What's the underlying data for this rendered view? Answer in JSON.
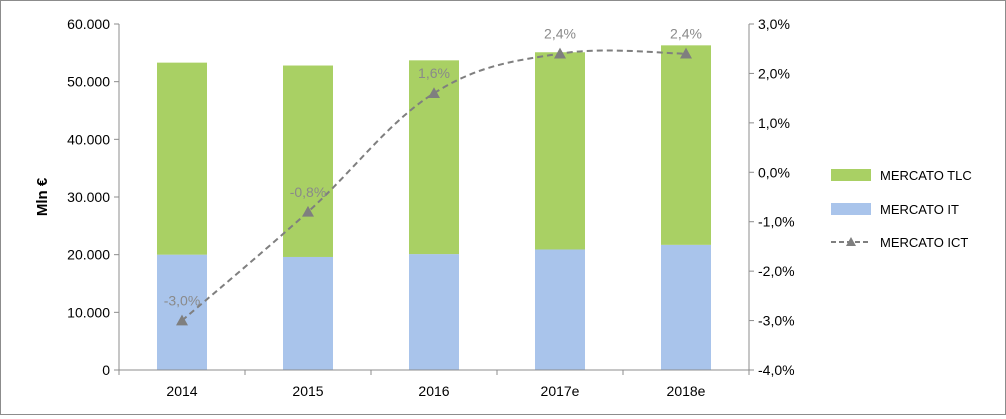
{
  "chart_data": {
    "type": "bar",
    "stacked": true,
    "categories": [
      "2014",
      "2015",
      "2016",
      "2017e",
      "2018e"
    ],
    "series": [
      {
        "name": "MERCATO IT",
        "type": "bar",
        "axis": "left",
        "color": "#a9c4eb",
        "values": [
          20000,
          19600,
          20100,
          20900,
          21700
        ]
      },
      {
        "name": "MERCATO TLC",
        "type": "bar",
        "axis": "left",
        "color": "#a9d064",
        "values": [
          33300,
          33200,
          33600,
          34200,
          34600
        ]
      },
      {
        "name": "MERCATO ICT",
        "type": "line",
        "axis": "right",
        "color": "#7f7f7f",
        "style": "dashed",
        "marker": "triangle",
        "values": [
          -3.0,
          -0.8,
          1.6,
          2.4,
          2.4
        ],
        "data_labels": [
          "-3,0%",
          "-0,8%",
          "1,6%",
          "2,4%",
          "2,4%"
        ]
      }
    ],
    "ylabel": "Mln €",
    "ylim": [
      0,
      60000
    ],
    "y_ticks": [
      "0",
      "10.000",
      "20.000",
      "30.000",
      "40.000",
      "50.000",
      "60.000"
    ],
    "y2lim": [
      -4.0,
      3.0
    ],
    "y2_ticks": [
      "-4,0%",
      "-3,0%",
      "-2,0%",
      "-1,0%",
      "0,0%",
      "1,0%",
      "2,0%",
      "3,0%"
    ],
    "legend": {
      "placement": "right",
      "entries": [
        "MERCATO TLC",
        "MERCATO IT",
        "MERCATO ICT"
      ]
    },
    "grid": false
  }
}
